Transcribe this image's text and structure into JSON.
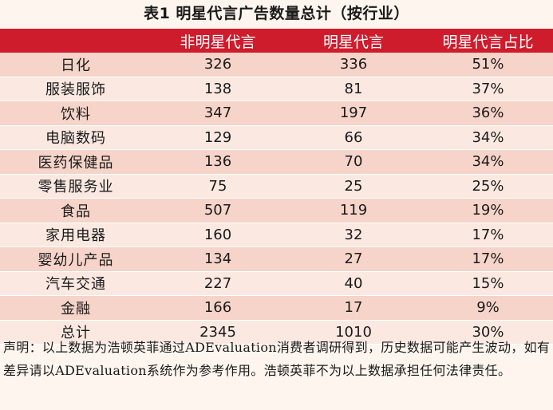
{
  "title": "表1  明星代言广告数量总计（按行业）",
  "table": {
    "headers": [
      "",
      "非明星代言",
      "明星代言",
      "明星代言占比"
    ],
    "rows": [
      {
        "industry": "日化",
        "non_celebrity": "326",
        "celebrity": "336",
        "share": "51%"
      },
      {
        "industry": "服装服饰",
        "non_celebrity": "138",
        "celebrity": "81",
        "share": "37%"
      },
      {
        "industry": "饮料",
        "non_celebrity": "347",
        "celebrity": "197",
        "share": "36%"
      },
      {
        "industry": "电脑数码",
        "non_celebrity": "129",
        "celebrity": "66",
        "share": "34%"
      },
      {
        "industry": "医药保健品",
        "non_celebrity": "136",
        "celebrity": "70",
        "share": "34%"
      },
      {
        "industry": "零售服务业",
        "non_celebrity": "75",
        "celebrity": "25",
        "share": "25%"
      },
      {
        "industry": "食品",
        "non_celebrity": "507",
        "celebrity": "119",
        "share": "19%"
      },
      {
        "industry": "家用电器",
        "non_celebrity": "160",
        "celebrity": "32",
        "share": "17%"
      },
      {
        "industry": "婴幼儿产品",
        "non_celebrity": "134",
        "celebrity": "27",
        "share": "17%"
      },
      {
        "industry": "汽车交通",
        "non_celebrity": "227",
        "celebrity": "40",
        "share": "15%"
      },
      {
        "industry": "金融",
        "non_celebrity": "166",
        "celebrity": "17",
        "share": "9%"
      },
      {
        "industry": "总计",
        "non_celebrity": "2345",
        "celebrity": "1010",
        "share": "30%"
      }
    ]
  },
  "note": "声明：以上数据为浩顿英菲通过ADEvaluation消费者调研得到，历史数据可能产生波动，如有差异请以ADEvaluation系统作为参考作用。浩顿英菲不为以上数据承担任何法律责任。",
  "colors": {
    "header_bg": "#cf1c2c",
    "row_dark": "#f6d4c9",
    "row_light": "#fbe9e1",
    "page_bg": "#fdf5ee"
  }
}
